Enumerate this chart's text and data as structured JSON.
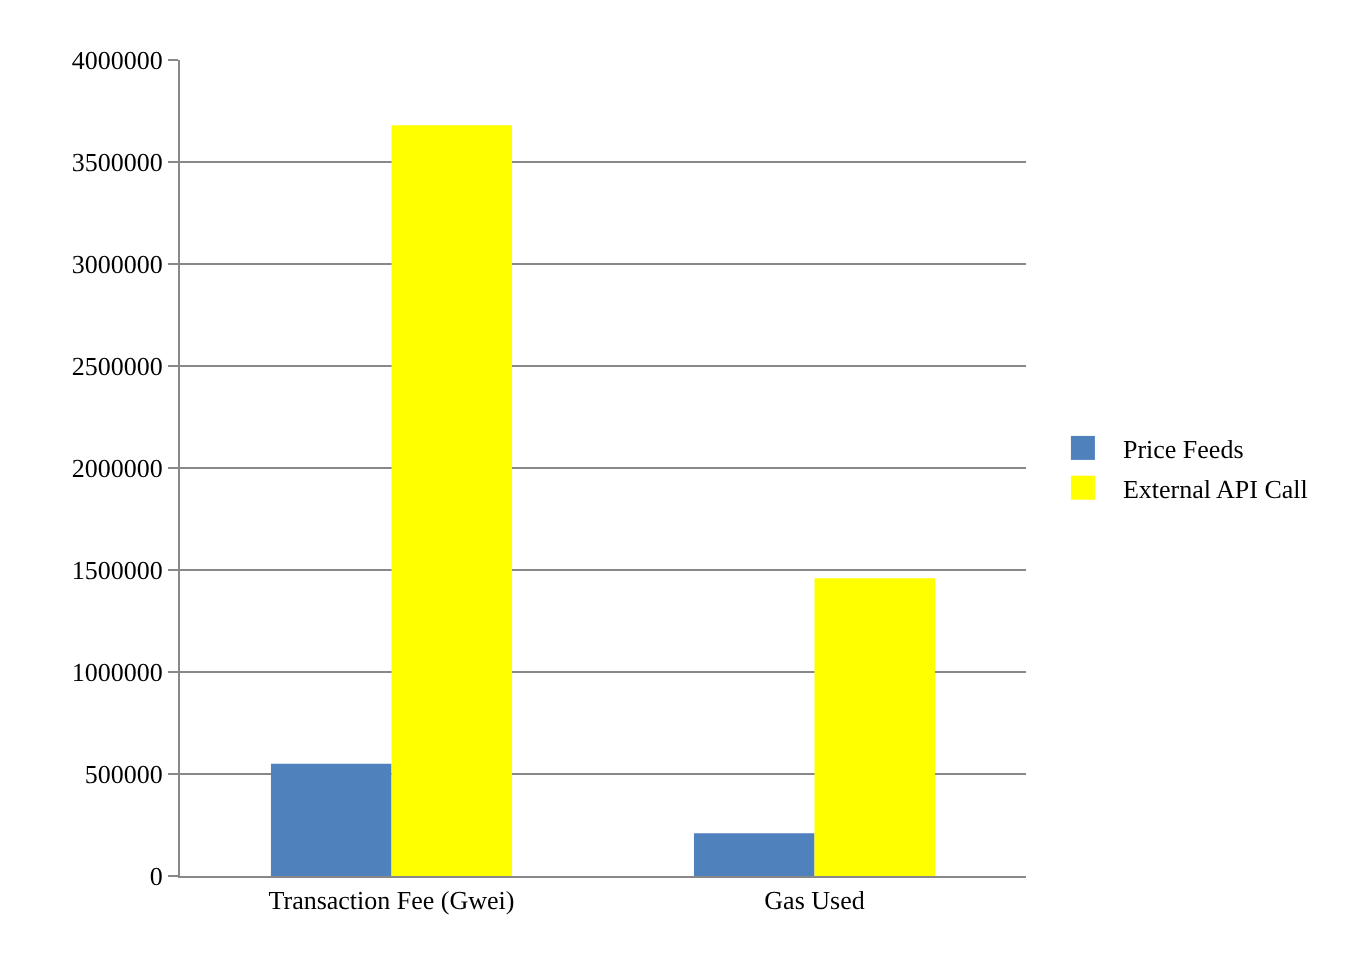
{
  "chart_data": {
    "type": "bar",
    "categories": [
      "Transaction Fee (Gwei)",
      "Gas Used"
    ],
    "series": [
      {
        "name": "Price Feeds",
        "color": "#4f81bd",
        "values": [
          550000,
          210000
        ]
      },
      {
        "name": "External API Call",
        "color": "#ffff00",
        "values": [
          3680000,
          1460000
        ]
      }
    ],
    "ylim": [
      0,
      4000000
    ],
    "yticks": [
      0,
      500000,
      1000000,
      1500000,
      2000000,
      2500000,
      3000000,
      3500000,
      4000000
    ],
    "grid": "y",
    "legend": "right"
  }
}
